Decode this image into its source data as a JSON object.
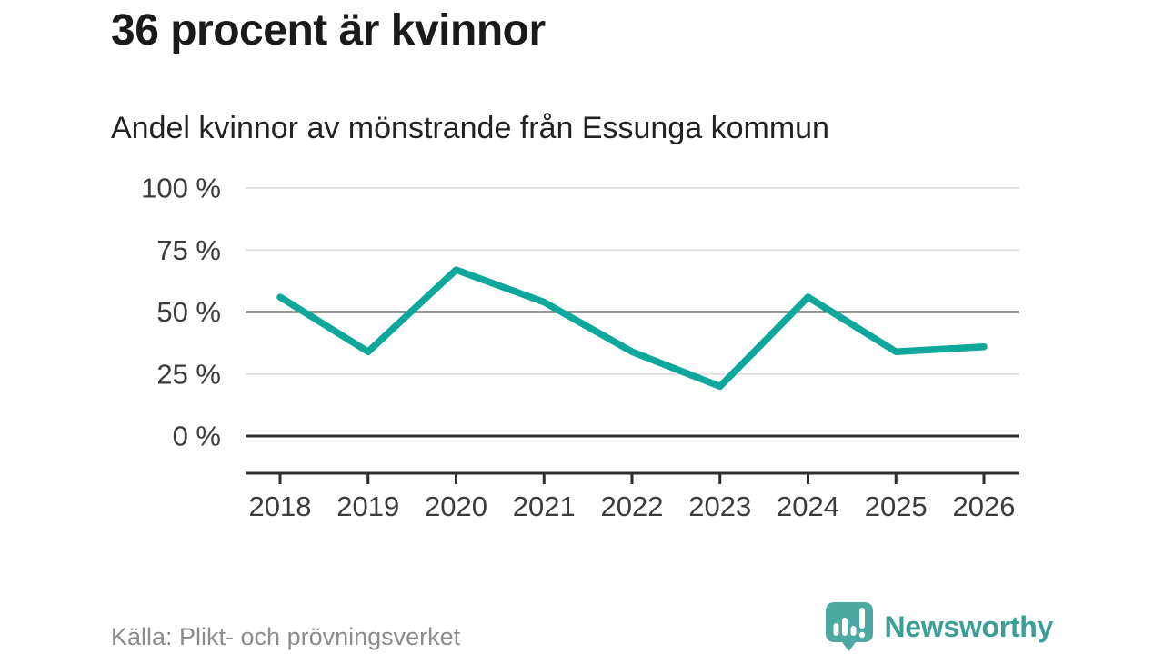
{
  "title": "36 procent är kvinnor",
  "subtitle": "Andel kvinnor av mönstrande från Essunga kommun",
  "footer": {
    "source": "Källa: Plikt- och prövningsverket",
    "brand": "Newsworthy"
  },
  "colors": {
    "line": "#0da79b",
    "grid_light": "#dcdcdc",
    "grid_mid": "#5f5f5f",
    "grid_zero": "#2e2e2e",
    "axis": "#2e2e2e",
    "axis_text": "#3c3c3c",
    "title_text": "#1a1a1a",
    "subtitle_text": "#222222",
    "source_text": "#8c8c8c",
    "logo_bubble": "#4da8a1",
    "logo_text": "#3d9d97"
  },
  "chart_data": {
    "type": "line",
    "categories": [
      "2018",
      "2019",
      "2020",
      "2021",
      "2022",
      "2023",
      "2024",
      "2025",
      "2026"
    ],
    "values": [
      56,
      34,
      67,
      54,
      34,
      20,
      56,
      34,
      36
    ],
    "title": "36 procent är kvinnor",
    "subtitle": "Andel kvinnor av mönstrande från Essunga kommun",
    "xlabel": "",
    "ylabel": "",
    "ylim": [
      0,
      100
    ],
    "yticks": [
      0,
      25,
      50,
      75,
      100
    ],
    "ytick_suffix": " %",
    "grid": "horizontal",
    "emphasized_gridline": 50,
    "baseline_gridline": 0,
    "legend": "none"
  }
}
